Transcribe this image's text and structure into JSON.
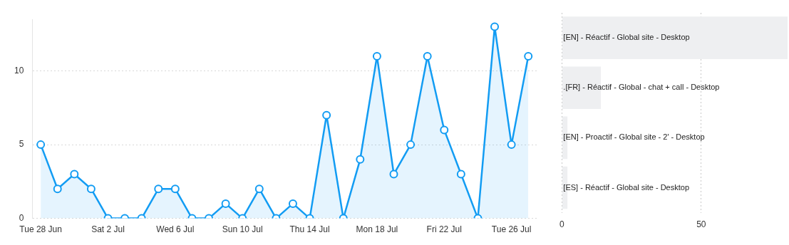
{
  "chart_data": [
    {
      "type": "area",
      "categories": [
        "Tue 28 Jun",
        null,
        null,
        null,
        "Sat 2 Jul",
        null,
        null,
        null,
        "Wed 6 Jul",
        null,
        null,
        null,
        "Sun 10 Jul",
        null,
        null,
        null,
        "Thu 14 Jul",
        null,
        null,
        null,
        "Mon 18 Jul",
        null,
        null,
        null,
        "Fri 22 Jul",
        null,
        null,
        null,
        "Tue 26 Jul",
        null
      ],
      "series": [
        {
          "color": "#129cf3",
          "values": [
            5,
            2,
            3,
            2,
            0,
            0,
            0,
            2,
            2,
            0,
            0,
            1,
            0,
            2,
            0,
            1,
            0,
            7,
            0,
            4,
            11,
            3,
            5,
            11,
            6,
            3,
            0,
            13,
            5,
            11
          ]
        }
      ],
      "ylim": [
        0,
        13.5
      ],
      "yticks": [
        0,
        5,
        10
      ],
      "grid": "y",
      "marker": "circle",
      "line_style": "solid"
    },
    {
      "type": "bar",
      "orientation": "horizontal",
      "categories": [
        "[EN] - Réactif - Global site - Desktop",
        ".[FR] - Réactif - Global - chat + call - Desktop",
        "[EN] - Proactif - Global site - 2' - Desktop",
        "[ES] - Réactif - Global site - Desktop"
      ],
      "series": [
        {
          "color": "#eeeff1",
          "values": [
            81,
            14,
            2,
            2
          ]
        }
      ],
      "xlim": [
        0,
        81
      ],
      "xticks": [
        0,
        50
      ],
      "grid": "x"
    }
  ]
}
